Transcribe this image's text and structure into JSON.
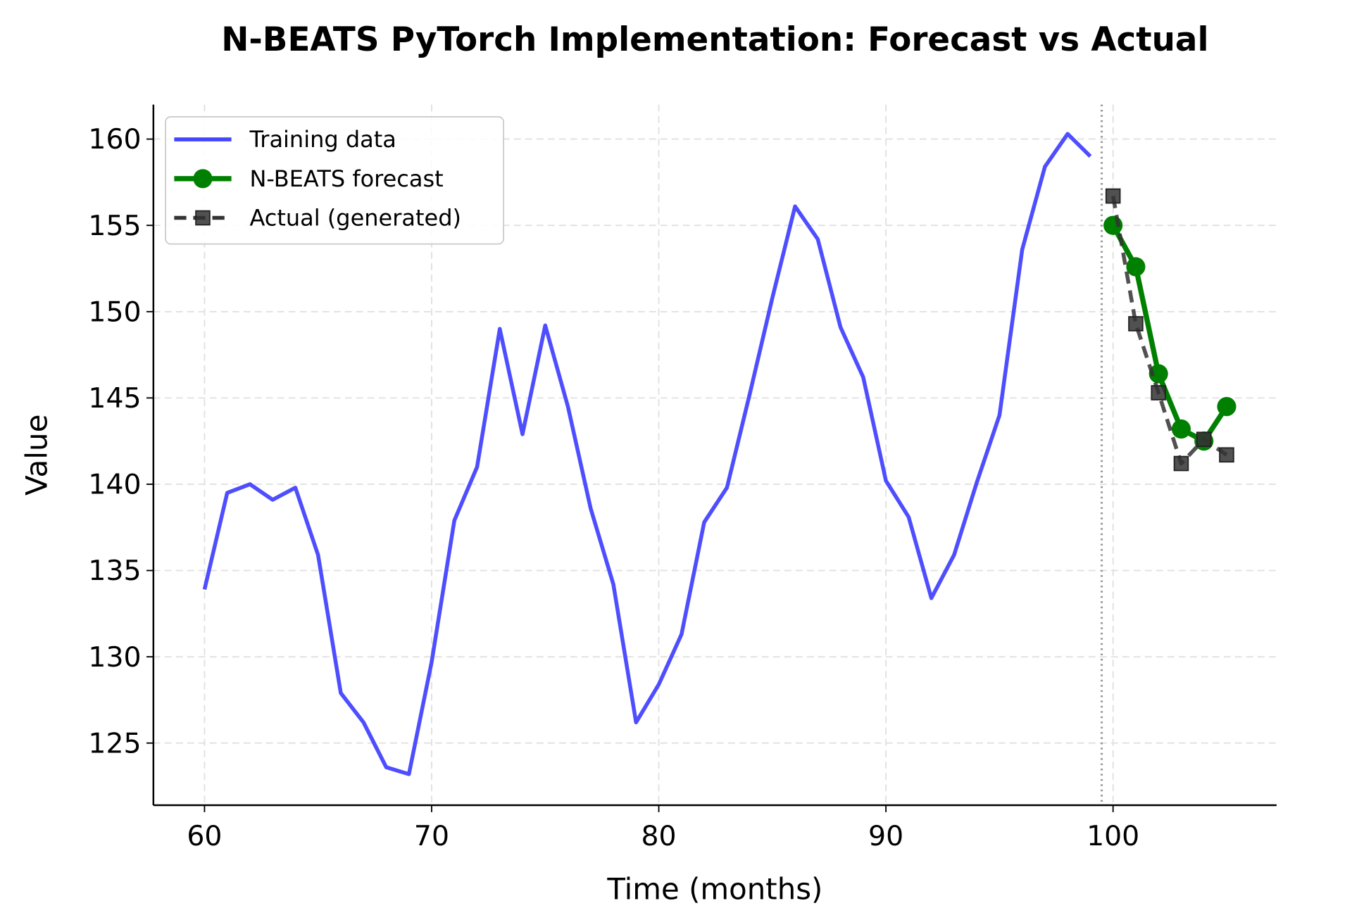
{
  "chart_data": {
    "type": "line",
    "title": "N-BEATS PyTorch Implementation: Forecast vs Actual",
    "xlabel": "Time (months)",
    "ylabel": "Value",
    "xlim": [
      57.75,
      107.2
    ],
    "ylim": [
      121.4,
      162.0
    ],
    "xticks": [
      60,
      70,
      80,
      90,
      100
    ],
    "yticks": [
      125,
      130,
      135,
      140,
      145,
      150,
      155,
      160
    ],
    "grid": true,
    "legend": "top-left",
    "split_line_x": 99.5,
    "series": [
      {
        "name": "Training data",
        "color": "#4444ff",
        "style": "solid",
        "marker": "none",
        "x": [
          60,
          61,
          62,
          63,
          64,
          65,
          66,
          67,
          68,
          69,
          70,
          71,
          72,
          73,
          74,
          75,
          76,
          77,
          78,
          79,
          80,
          81,
          82,
          83,
          84,
          85,
          86,
          87,
          88,
          89,
          90,
          91,
          92,
          93,
          94,
          95,
          96,
          97,
          98,
          99
        ],
        "y": [
          133.9,
          139.5,
          140.0,
          139.1,
          139.8,
          135.9,
          127.9,
          126.2,
          123.6,
          123.2,
          129.7,
          137.9,
          141.0,
          149.0,
          142.9,
          149.2,
          144.5,
          138.6,
          134.2,
          126.2,
          128.4,
          131.3,
          137.8,
          139.8,
          145.2,
          150.8,
          156.1,
          154.2,
          149.1,
          146.2,
          140.2,
          138.1,
          133.4,
          135.9,
          140.1,
          144.0,
          153.6,
          158.4,
          160.3,
          159.0
        ]
      },
      {
        "name": "N-BEATS forecast",
        "color": "#008000",
        "style": "solid",
        "marker": "circle",
        "x": [
          100,
          101,
          102,
          103,
          104,
          105
        ],
        "y": [
          155.0,
          152.6,
          146.4,
          143.2,
          142.5,
          144.5
        ]
      },
      {
        "name": "Actual (generated)",
        "color": "#333333",
        "style": "dashed",
        "marker": "square",
        "x": [
          100,
          101,
          102,
          103,
          104,
          105
        ],
        "y": [
          156.7,
          149.3,
          145.3,
          141.2,
          142.6,
          141.7
        ]
      }
    ]
  }
}
